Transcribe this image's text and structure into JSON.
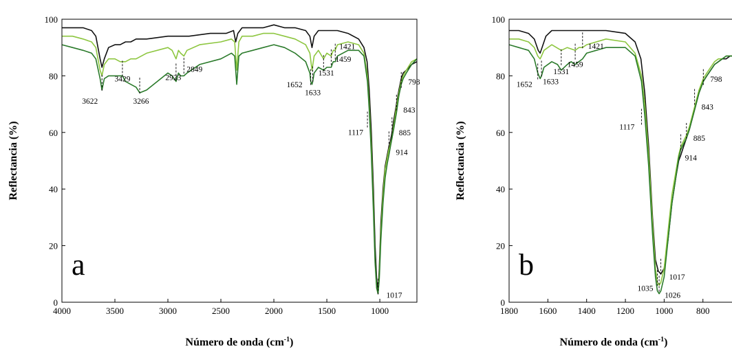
{
  "colors": {
    "series_1": "#111111",
    "series_2": "#8dc63f",
    "series_3": "#2a7a2a",
    "axis": "#000000",
    "background": "#ffffff"
  },
  "chart_data": [
    {
      "type": "line",
      "panel_label": "a",
      "xlabel": "Número de onda (cm",
      "xlabel_sup": "-1",
      "xlabel_end": ")",
      "ylabel": "Reflectancia (%)",
      "xlim": [
        4000,
        650
      ],
      "ylim": [
        0,
        100
      ],
      "x_reversed": true,
      "x_ticks": [
        4000,
        3500,
        3000,
        2500,
        2000,
        1500,
        1000
      ],
      "x_tick_labels": [
        "4000",
        "3500",
        "3000",
        "2500",
        "2000",
        "1500",
        "1000"
      ],
      "y_ticks": [
        0,
        20,
        40,
        60,
        80,
        100
      ],
      "y_tick_labels": [
        "0",
        "20",
        "40",
        "60",
        "80",
        "100"
      ],
      "grid": false,
      "legend": "none",
      "annotations": [
        {
          "text": "3622",
          "x": 3622,
          "y": 75
        },
        {
          "text": "3429",
          "x": 3429,
          "y": 80
        },
        {
          "text": "3266",
          "x": 3266,
          "y": 74
        },
        {
          "text": "2923",
          "x": 2923,
          "y": 79
        },
        {
          "text": "2849",
          "x": 2849,
          "y": 81
        },
        {
          "text": "1652",
          "x": 1652,
          "y": 77
        },
        {
          "text": "1633",
          "x": 1633,
          "y": 78
        },
        {
          "text": "1531",
          "x": 1531,
          "y": 82
        },
        {
          "text": "1459",
          "x": 1459,
          "y": 84
        },
        {
          "text": "1421",
          "x": 1421,
          "y": 86
        },
        {
          "text": "1117",
          "x": 1117,
          "y": 62
        },
        {
          "text": "1017",
          "x": 1017,
          "y": 3
        },
        {
          "text": "914",
          "x": 914,
          "y": 55
        },
        {
          "text": "885",
          "x": 885,
          "y": 60
        },
        {
          "text": "843",
          "x": 843,
          "y": 68
        },
        {
          "text": "798",
          "x": 798,
          "y": 76
        }
      ],
      "series": [
        {
          "color": "#111111",
          "x": [
            4000,
            3900,
            3800,
            3720,
            3680,
            3640,
            3622,
            3600,
            3560,
            3500,
            3450,
            3400,
            3350,
            3300,
            3200,
            3000,
            2800,
            2600,
            2450,
            2380,
            2360,
            2340,
            2300,
            2200,
            2100,
            2000,
            1900,
            1800,
            1700,
            1660,
            1640,
            1620,
            1580,
            1530,
            1500,
            1460,
            1400,
            1300,
            1200,
            1150,
            1120,
            1100,
            1080,
            1060,
            1045,
            1030,
            1017,
            1005,
            990,
            970,
            950,
            930,
            914,
            900,
            885,
            870,
            843,
            820,
            798,
            780,
            750,
            700,
            650
          ],
          "y": [
            97,
            97,
            97,
            96,
            94,
            86,
            83,
            86,
            90,
            91,
            91,
            92,
            92,
            93,
            93,
            94,
            94,
            95,
            95,
            96,
            92,
            95,
            97,
            97,
            97,
            98,
            97,
            97,
            96,
            94,
            90,
            94,
            96,
            96,
            96,
            96,
            96,
            95,
            93,
            90,
            85,
            75,
            60,
            40,
            20,
            8,
            4,
            12,
            28,
            40,
            48,
            52,
            55,
            57,
            60,
            64,
            70,
            75,
            79,
            81,
            82,
            84,
            85
          ]
        },
        {
          "color": "#8dc63f",
          "x": [
            4000,
            3900,
            3800,
            3720,
            3680,
            3640,
            3622,
            3600,
            3560,
            3500,
            3450,
            3400,
            3350,
            3300,
            3200,
            3000,
            2960,
            2923,
            2900,
            2880,
            2849,
            2820,
            2700,
            2500,
            2400,
            2370,
            2350,
            2330,
            2300,
            2200,
            2100,
            2000,
            1900,
            1800,
            1700,
            1660,
            1640,
            1620,
            1580,
            1531,
            1500,
            1459,
            1440,
            1421,
            1400,
            1300,
            1200,
            1150,
            1117,
            1100,
            1080,
            1060,
            1045,
            1030,
            1017,
            1005,
            990,
            970,
            950,
            930,
            914,
            900,
            885,
            870,
            843,
            820,
            798,
            780,
            750,
            700,
            650
          ],
          "y": [
            94,
            94,
            93,
            92,
            90,
            82,
            80,
            84,
            86,
            86,
            85,
            85,
            86,
            86,
            88,
            90,
            89,
            86,
            89,
            88,
            87,
            89,
            91,
            92,
            93,
            92,
            82,
            92,
            94,
            94,
            95,
            95,
            94,
            93,
            91,
            88,
            82,
            87,
            89,
            86,
            88,
            87,
            89,
            89,
            91,
            92,
            91,
            88,
            80,
            70,
            55,
            35,
            15,
            5,
            3,
            10,
            25,
            38,
            47,
            51,
            54,
            56,
            58,
            62,
            69,
            74,
            78,
            80,
            82,
            85,
            86
          ]
        },
        {
          "color": "#2a7a2a",
          "x": [
            4000,
            3900,
            3800,
            3720,
            3680,
            3640,
            3622,
            3600,
            3560,
            3500,
            3429,
            3400,
            3350,
            3300,
            3266,
            3200,
            3100,
            3000,
            2960,
            2923,
            2900,
            2880,
            2849,
            2820,
            2700,
            2500,
            2400,
            2370,
            2350,
            2330,
            2300,
            2200,
            2100,
            2000,
            1900,
            1800,
            1700,
            1660,
            1652,
            1640,
            1633,
            1620,
            1580,
            1531,
            1500,
            1459,
            1440,
            1421,
            1400,
            1300,
            1200,
            1150,
            1117,
            1100,
            1080,
            1060,
            1045,
            1030,
            1017,
            1005,
            990,
            970,
            950,
            930,
            914,
            900,
            885,
            870,
            843,
            820,
            798,
            780,
            750,
            700,
            650
          ],
          "y": [
            91,
            90,
            89,
            88,
            86,
            79,
            75,
            79,
            80,
            80,
            80,
            78,
            77,
            76,
            74,
            75,
            78,
            81,
            80,
            78,
            81,
            80,
            80,
            81,
            84,
            86,
            88,
            87,
            77,
            87,
            88,
            89,
            90,
            91,
            90,
            88,
            85,
            81,
            78,
            77,
            78,
            81,
            83,
            82,
            83,
            83,
            85,
            85,
            87,
            89,
            89,
            87,
            78,
            68,
            52,
            32,
            14,
            5,
            3,
            8,
            22,
            35,
            44,
            49,
            52,
            55,
            58,
            61,
            67,
            73,
            77,
            79,
            81,
            84,
            86
          ]
        }
      ]
    },
    {
      "type": "line",
      "panel_label": "b",
      "xlabel": "Número de onda (cm",
      "xlabel_sup": "-1",
      "xlabel_end": ")",
      "ylabel": "Reflectancia (%)",
      "xlim": [
        1800,
        650
      ],
      "ylim": [
        0,
        100
      ],
      "x_reversed": true,
      "x_ticks": [
        1800,
        1600,
        1400,
        1200,
        1000,
        800
      ],
      "x_tick_labels": [
        "1800",
        "1600",
        "1400",
        "1200",
        "1000",
        "800"
      ],
      "y_ticks": [
        0,
        20,
        40,
        60,
        80,
        100
      ],
      "y_tick_labels": [
        "0",
        "20",
        "40",
        "60",
        "80",
        "100"
      ],
      "grid": false,
      "legend": "none",
      "annotations": [
        {
          "text": "1652",
          "x": 1652,
          "y": 79
        },
        {
          "text": "1633",
          "x": 1633,
          "y": 80
        },
        {
          "text": "1531",
          "x": 1531,
          "y": 84
        },
        {
          "text": "1459",
          "x": 1459,
          "y": 86
        },
        {
          "text": "1421",
          "x": 1421,
          "y": 90
        },
        {
          "text": "1117",
          "x": 1117,
          "y": 63
        },
        {
          "text": "1035",
          "x": 1035,
          "y": 6
        },
        {
          "text": "1026",
          "x": 1026,
          "y": 4
        },
        {
          "text": "1017",
          "x": 1017,
          "y": 10
        },
        {
          "text": "914",
          "x": 914,
          "y": 54
        },
        {
          "text": "885",
          "x": 885,
          "y": 58
        },
        {
          "text": "843",
          "x": 843,
          "y": 70
        },
        {
          "text": "798",
          "x": 798,
          "y": 77
        }
      ],
      "series": [
        {
          "color": "#111111",
          "x": [
            1800,
            1750,
            1700,
            1670,
            1650,
            1640,
            1630,
            1610,
            1580,
            1500,
            1400,
            1300,
            1200,
            1150,
            1120,
            1100,
            1080,
            1060,
            1045,
            1030,
            1017,
            1000,
            980,
            960,
            940,
            925,
            914,
            900,
            885,
            870,
            843,
            820,
            798,
            780,
            760,
            740,
            720,
            700,
            680,
            660,
            650
          ],
          "y": [
            96,
            96,
            95,
            93,
            89,
            88,
            90,
            94,
            96,
            96,
            96,
            96,
            95,
            92,
            86,
            74,
            55,
            30,
            15,
            11,
            10,
            12,
            22,
            35,
            44,
            50,
            52,
            55,
            58,
            61,
            68,
            74,
            78,
            80,
            82,
            84,
            85,
            86,
            86,
            87,
            87
          ]
        },
        {
          "color": "#8dc63f",
          "x": [
            1800,
            1750,
            1700,
            1670,
            1652,
            1640,
            1633,
            1620,
            1580,
            1531,
            1500,
            1459,
            1440,
            1421,
            1400,
            1300,
            1200,
            1150,
            1117,
            1100,
            1080,
            1060,
            1045,
            1035,
            1026,
            1017,
            1000,
            980,
            960,
            940,
            925,
            914,
            900,
            885,
            870,
            843,
            820,
            798,
            780,
            760,
            740,
            720,
            700,
            680,
            660,
            650
          ],
          "y": [
            93,
            93,
            92,
            90,
            87,
            86,
            87,
            89,
            91,
            89,
            90,
            89,
            90,
            90,
            91,
            93,
            92,
            88,
            80,
            70,
            52,
            28,
            12,
            7,
            6,
            7,
            12,
            25,
            38,
            46,
            52,
            55,
            57,
            59,
            62,
            69,
            75,
            79,
            81,
            83,
            85,
            86,
            86,
            87,
            87,
            87
          ]
        },
        {
          "color": "#2a7a2a",
          "x": [
            1800,
            1750,
            1700,
            1670,
            1652,
            1640,
            1633,
            1620,
            1580,
            1550,
            1531,
            1500,
            1480,
            1459,
            1440,
            1421,
            1400,
            1300,
            1200,
            1150,
            1117,
            1100,
            1080,
            1060,
            1045,
            1035,
            1026,
            1017,
            1000,
            980,
            960,
            940,
            925,
            914,
            900,
            885,
            870,
            843,
            820,
            798,
            780,
            760,
            740,
            720,
            700,
            680,
            660,
            650
          ],
          "y": [
            91,
            90,
            89,
            86,
            81,
            79,
            80,
            83,
            85,
            84,
            82,
            84,
            85,
            84,
            85,
            86,
            88,
            90,
            90,
            87,
            78,
            66,
            48,
            24,
            9,
            4,
            3,
            4,
            9,
            22,
            35,
            44,
            51,
            54,
            56,
            58,
            61,
            68,
            74,
            78,
            80,
            82,
            84,
            85,
            86,
            87,
            87,
            87
          ]
        }
      ]
    }
  ]
}
